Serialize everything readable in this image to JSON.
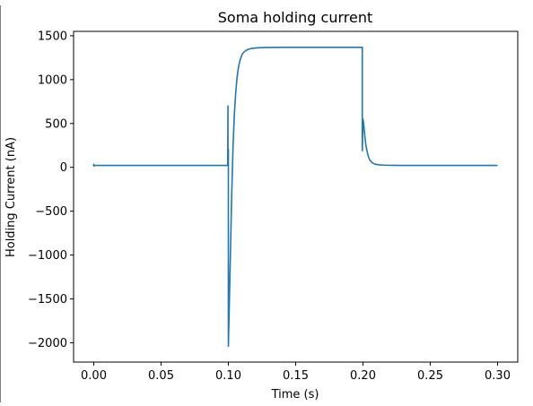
{
  "chart_data": {
    "type": "line",
    "title": "Soma holding current",
    "xlabel": "Time (s)",
    "ylabel": "Holding Current (nA)",
    "xlim": [
      -0.015,
      0.315
    ],
    "ylim": [
      -2220,
      1550
    ],
    "xticks": [
      0.0,
      0.05,
      0.1,
      0.15,
      0.2,
      0.25,
      0.3
    ],
    "xtick_labels": [
      "0.00",
      "0.05",
      "0.10",
      "0.15",
      "0.20",
      "0.25",
      "0.30"
    ],
    "yticks": [
      -2000,
      -1500,
      -1000,
      -500,
      0,
      500,
      1000,
      1500
    ],
    "ytick_labels": [
      "−2000",
      "−1500",
      "−1000",
      "−500",
      "0",
      "500",
      "1000",
      "1500"
    ],
    "grid": false,
    "legend": "none",
    "series": [
      {
        "color": "#1f77b4",
        "x": [
          0.0,
          0.0,
          0.0,
          0.0005,
          0.05,
          0.0995,
          0.0997,
          0.0997,
          0.1,
          0.1,
          0.1,
          0.1005,
          0.1015,
          0.1025,
          0.1035,
          0.1045,
          0.1055,
          0.1065,
          0.1075,
          0.1085,
          0.1095,
          0.1105,
          0.112,
          0.114,
          0.117,
          0.121,
          0.126,
          0.132,
          0.14,
          0.15,
          0.175,
          0.1995,
          0.1995,
          0.2,
          0.2005,
          0.201,
          0.2015,
          0.202,
          0.203,
          0.204,
          0.205,
          0.207,
          0.209,
          0.212,
          0.216,
          0.222,
          0.23,
          0.25,
          0.3
        ],
        "y": [
          10,
          35,
          15,
          22,
          22,
          22,
          700,
          22,
          210,
          -2040,
          -2040,
          -1700,
          -1000,
          -300,
          250,
          620,
          860,
          1030,
          1140,
          1210,
          1260,
          1295,
          1320,
          1340,
          1355,
          1362,
          1365,
          1367,
          1368,
          1368,
          1368,
          1368,
          190,
          550,
          500,
          420,
          340,
          270,
          185,
          125,
          85,
          50,
          36,
          28,
          25,
          23,
          22,
          22,
          22
        ]
      }
    ]
  }
}
